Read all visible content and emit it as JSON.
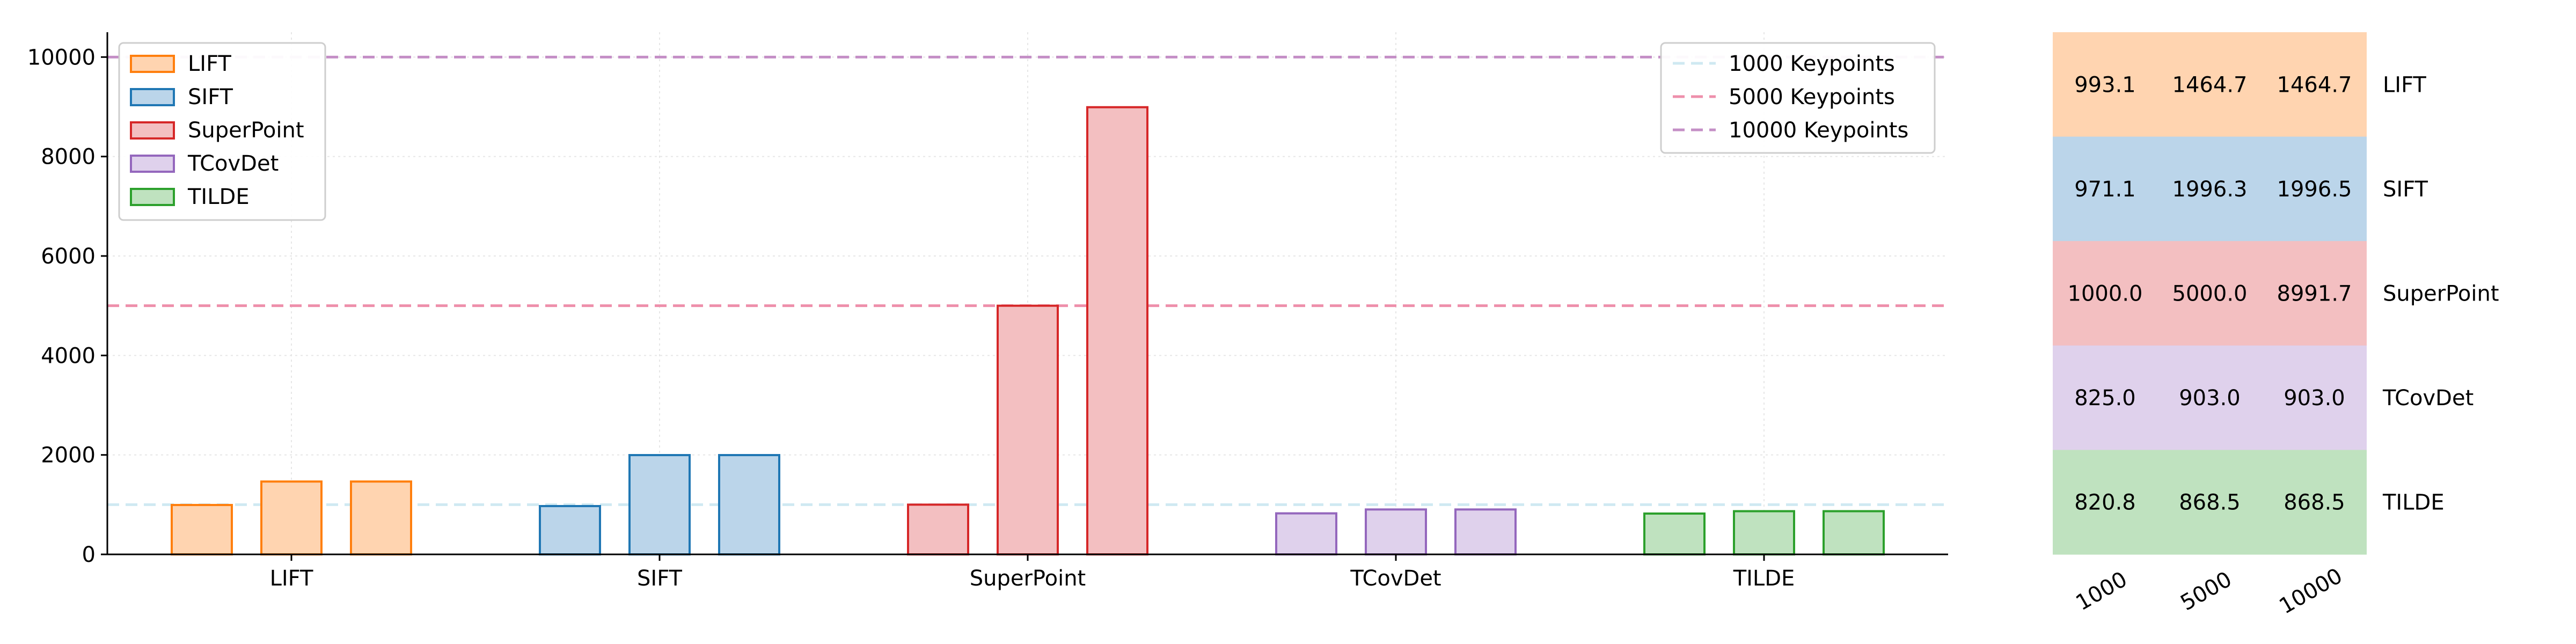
{
  "chart_data": [
    {
      "type": "bar",
      "categories": [
        "LIFT",
        "SIFT",
        "SuperPoint",
        "TCovDet",
        "TILDE"
      ],
      "series": [
        {
          "name": "1000",
          "values": [
            993.1,
            971.1,
            1000.0,
            825.0,
            820.8
          ]
        },
        {
          "name": "5000",
          "values": [
            1464.7,
            1996.3,
            5000.0,
            903.0,
            868.5
          ]
        },
        {
          "name": "10000",
          "values": [
            1464.7,
            1996.5,
            8991.7,
            903.0,
            868.5
          ]
        }
      ],
      "category_colors": {
        "LIFT": {
          "stroke": "#ff7f0e",
          "fill": "#ffd4b0"
        },
        "SIFT": {
          "stroke": "#1f77b4",
          "fill": "#bbd5ea"
        },
        "SuperPoint": {
          "stroke": "#d62728",
          "fill": "#f3bfc1"
        },
        "TCovDet": {
          "stroke": "#9467bd",
          "fill": "#dfd1ec"
        },
        "TILDE": {
          "stroke": "#2ca02c",
          "fill": "#bfe2bf"
        }
      },
      "reference_lines": [
        {
          "label": "1000 Keypoints",
          "value": 1000,
          "color": "#cfe9f2"
        },
        {
          "label": "5000 Keypoints",
          "value": 5000,
          "color": "#ee8fab"
        },
        {
          "label": "10000 Keypoints",
          "value": 10000,
          "color": "#c48fc6"
        }
      ],
      "ylim": [
        0,
        10500
      ],
      "yticks": [
        0,
        2000,
        4000,
        6000,
        8000,
        10000
      ],
      "grid": true,
      "legend_placement": "top-left",
      "reference_legend_placement": "top-right",
      "title": "",
      "xlabel": "",
      "ylabel": ""
    },
    {
      "type": "heatmap",
      "columns": [
        "1000",
        "5000",
        "10000"
      ],
      "rows": [
        "LIFT",
        "SIFT",
        "SuperPoint",
        "TCovDet",
        "TILDE"
      ],
      "values": [
        [
          "993.1",
          "1464.7",
          "1464.7"
        ],
        [
          "971.1",
          "1996.3",
          "1996.5"
        ],
        [
          "1000.0",
          "5000.0",
          "8991.7"
        ],
        [
          "825.0",
          "903.0",
          "903.0"
        ],
        [
          "820.8",
          "868.5",
          "868.5"
        ]
      ]
    }
  ]
}
